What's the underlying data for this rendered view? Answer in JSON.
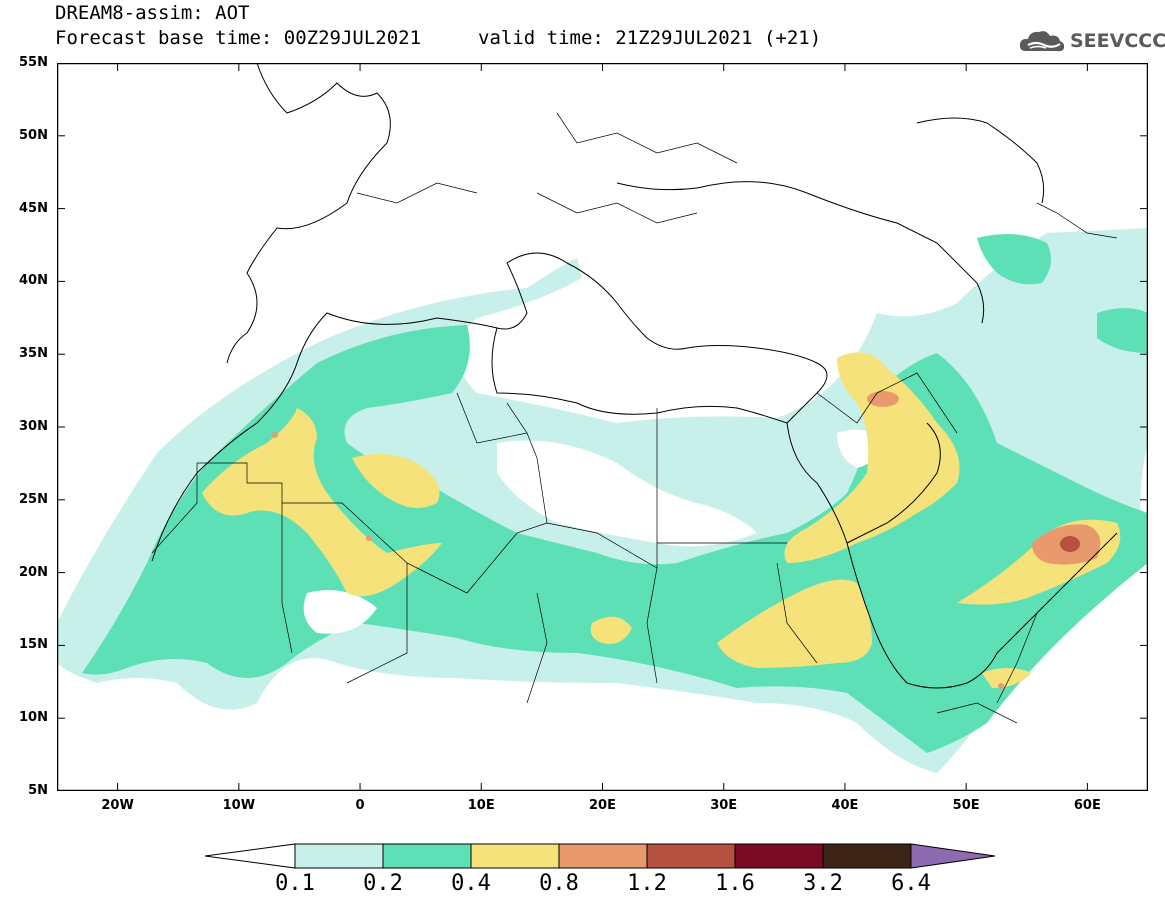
{
  "header": {
    "title_line1": "DREAM8-assim: AOT",
    "forecast_base": "Forecast base time: 00Z29JUL2021",
    "valid_time": "valid time: 21Z29JUL2021 (+21)",
    "logo_text": "SEEVCCC",
    "logo_icon": "cloud-icon"
  },
  "map": {
    "lat_labels": [
      "55N",
      "50N",
      "45N",
      "40N",
      "35N",
      "30N",
      "25N",
      "20N",
      "15N",
      "10N",
      "5N"
    ],
    "lon_labels": [
      "20W",
      "10W",
      "0",
      "10E",
      "20E",
      "30E",
      "40E",
      "50E",
      "60E"
    ],
    "lat_range": [
      5,
      55
    ],
    "lon_range": [
      -25,
      65
    ],
    "field": "Aerosol Optical Thickness (AOT)"
  },
  "colorbar": {
    "tick_labels": [
      "0.1",
      "0.2",
      "0.4",
      "0.8",
      "1.2",
      "1.6",
      "3.2",
      "6.4"
    ],
    "colors": [
      "#ffffff",
      "#c7f0ea",
      "#5ee0b6",
      "#f6e27a",
      "#e99a6c",
      "#b5513f",
      "#7a0a26",
      "#3b2416",
      "#8e6ab3"
    ]
  }
}
